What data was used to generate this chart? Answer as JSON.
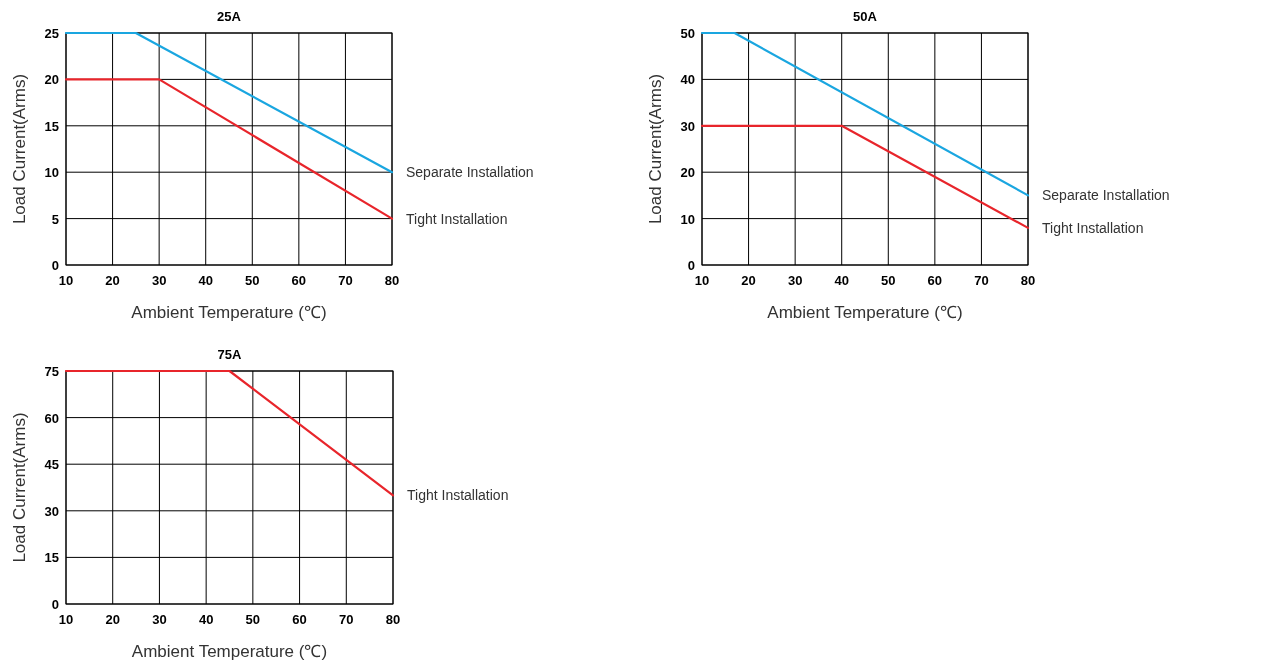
{
  "chart_data": [
    {
      "type": "line",
      "title": "25A",
      "xlabel": "Ambient Temperature (℃)",
      "ylabel": "Load Current(Arms)",
      "xlim": [
        10,
        80
      ],
      "xticks": [
        10,
        20,
        30,
        40,
        50,
        60,
        70,
        80
      ],
      "ylim": [
        0,
        25
      ],
      "yticks": [
        0,
        5,
        10,
        15,
        20,
        25
      ],
      "grid": true,
      "series": [
        {
          "name": "Separate Installation",
          "color": "#1aa6e0",
          "x": [
            10,
            25,
            80
          ],
          "values": [
            25,
            25,
            10
          ]
        },
        {
          "name": "Tight Installation",
          "color": "#e8252b",
          "x": [
            10,
            30,
            80
          ],
          "values": [
            20,
            20,
            5
          ]
        }
      ]
    },
    {
      "type": "line",
      "title": "50A",
      "xlabel": "Ambient Temperature (℃)",
      "ylabel": "Load Current(Arms)",
      "xlim": [
        10,
        80
      ],
      "xticks": [
        10,
        20,
        30,
        40,
        50,
        60,
        70,
        80
      ],
      "ylim": [
        0,
        50
      ],
      "yticks": [
        0,
        10,
        20,
        30,
        40,
        50
      ],
      "grid": true,
      "series": [
        {
          "name": "Separate Installation",
          "color": "#1aa6e0",
          "x": [
            10,
            17,
            80
          ],
          "values": [
            50,
            50,
            15
          ]
        },
        {
          "name": "Tight Installation",
          "color": "#e8252b",
          "x": [
            10,
            40,
            80
          ],
          "values": [
            30,
            30,
            8
          ]
        }
      ]
    },
    {
      "type": "line",
      "title": "75A",
      "xlabel": "Ambient Temperature (℃)",
      "ylabel": "Load Current(Arms)",
      "xlim": [
        10,
        80
      ],
      "xticks": [
        10,
        20,
        30,
        40,
        50,
        60,
        70,
        80
      ],
      "ylim": [
        0,
        75
      ],
      "yticks": [
        0,
        15,
        30,
        45,
        60,
        75
      ],
      "grid": true,
      "series": [
        {
          "name": "Tight Installation",
          "color": "#e8252b",
          "x": [
            10,
            45,
            80
          ],
          "values": [
            75,
            75,
            35
          ]
        }
      ]
    }
  ]
}
